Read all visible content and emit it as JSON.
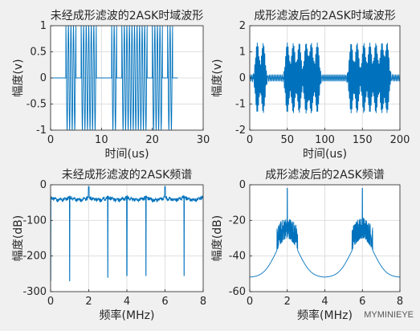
{
  "watermark": "MYMINIEYE",
  "chart_data": [
    {
      "type": "line",
      "title": "未经成形滤波的2ASK时域波形",
      "xlabel": "时间(us)",
      "ylabel": "幅度(v)",
      "xlim": [
        0,
        30
      ],
      "ylim": [
        -1,
        1
      ],
      "xticks": [
        0,
        10,
        20,
        30
      ],
      "yticks": [
        -1,
        -0.5,
        0,
        0.5,
        1
      ],
      "grid": true,
      "bits": [
        0,
        0,
        0,
        1,
        1,
        0,
        1,
        1,
        1,
        0,
        0,
        0,
        1,
        0,
        1,
        1,
        1,
        1,
        1,
        0,
        1,
        1,
        0,
        1,
        0
      ],
      "bit_duration_us": 1,
      "carrier_cycles_per_bit": 2,
      "signal_duration_us": 25,
      "series": [
        {
          "color": "#0072bd"
        }
      ]
    },
    {
      "type": "line",
      "title": "成形滤波后的2ASK时域波形",
      "xlabel": "时间(us)",
      "ylabel": "幅度(v)",
      "xlim": [
        0,
        200
      ],
      "ylim": [
        -2,
        2
      ],
      "xticks": [
        0,
        50,
        100,
        150,
        200
      ],
      "yticks": [
        -2,
        -1,
        0,
        1,
        2
      ],
      "grid": true,
      "peak_amplitude": 1,
      "burst_centers": [
        10,
        18,
        50,
        58,
        66,
        75,
        82,
        90,
        135,
        143,
        152,
        160,
        168,
        176,
        183
      ],
      "series": [
        {
          "color": "#0072bd"
        }
      ]
    },
    {
      "type": "line",
      "title": "未经成形滤波的2ASK频谱",
      "xlabel": "频率(MHz)",
      "ylabel": "幅度(dB)",
      "xlim": [
        0,
        8
      ],
      "ylim": [
        -300,
        0
      ],
      "xticks": [
        0,
        2,
        4,
        6,
        8
      ],
      "yticks": [
        -300,
        -200,
        -100,
        0
      ],
      "grid": true,
      "baseline_db": -30,
      "notches": [
        {
          "f": 1,
          "db": -270
        },
        {
          "f": 3,
          "db": -260
        },
        {
          "f": 4,
          "db": -255
        },
        {
          "f": 5,
          "db": -255
        },
        {
          "f": 7,
          "db": -255
        }
      ],
      "series": [
        {
          "color": "#0072bd"
        }
      ]
    },
    {
      "type": "line",
      "title": "成形滤波后的2ASK频谱",
      "xlabel": "频率(MHz)",
      "ylabel": "幅度(dB)",
      "xlim": [
        0,
        8
      ],
      "ylim": [
        -60,
        0
      ],
      "xticks": [
        0,
        2,
        4,
        6,
        8
      ],
      "yticks": [
        -60,
        -40,
        -20,
        0
      ],
      "grid": true,
      "floor_db": -52,
      "lobes": [
        {
          "f": 2,
          "half_width": 0.55,
          "level_db": -25,
          "peak_db": 0
        },
        {
          "f": 6,
          "half_width": 0.55,
          "level_db": -25,
          "peak_db": 0
        }
      ],
      "series": [
        {
          "color": "#0072bd"
        }
      ]
    }
  ]
}
